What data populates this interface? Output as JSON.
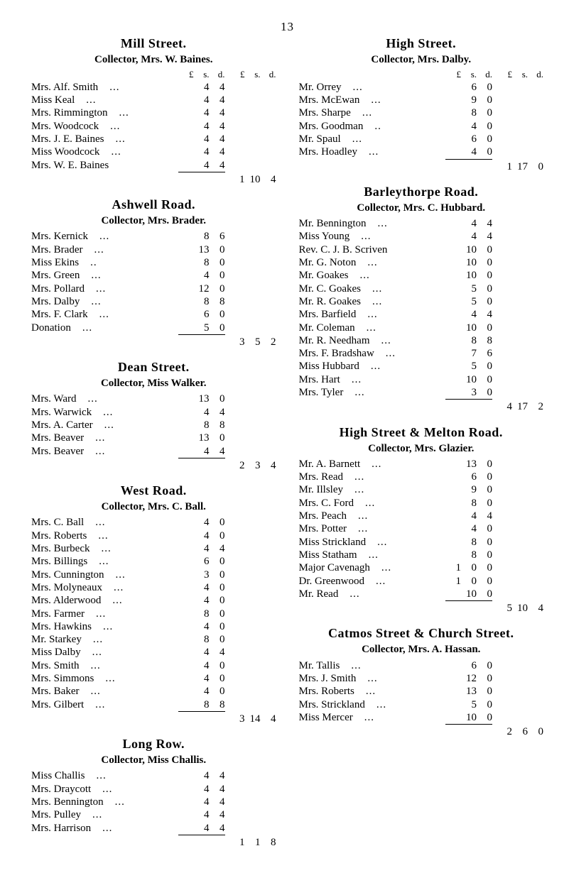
{
  "page_number": "13",
  "currency_header_inner": {
    "l": "£",
    "s": "s.",
    "d": "d."
  },
  "currency_header_total": {
    "l": "£",
    "s": "s.",
    "d": "d."
  },
  "left_sections": [
    {
      "title": "Mill Street.",
      "subtitle": "Collector, Mrs. W. Baines.",
      "show_headers": true,
      "entries": [
        {
          "name": "Mrs. Alf. Smith",
          "dots": "...",
          "s": "4",
          "d": "4"
        },
        {
          "name": "Miss Keal",
          "dots": "...",
          "s": "4",
          "d": "4"
        },
        {
          "name": "Mrs. Rimmington",
          "dots": "...",
          "s": "4",
          "d": "4"
        },
        {
          "name": "Mrs. Woodcock",
          "dots": "...",
          "s": "4",
          "d": "4"
        },
        {
          "name": "Mrs. J. E. Baines",
          "dots": "...",
          "s": "4",
          "d": "4"
        },
        {
          "name": "Miss Woodcock",
          "dots": "...",
          "s": "4",
          "d": "4"
        },
        {
          "name": "Mrs. W. E. Baines",
          "dots": "",
          "s": "4",
          "d": "4"
        }
      ],
      "total": {
        "l": "1",
        "s": "10",
        "d": "4"
      }
    },
    {
      "title": "Ashwell Road.",
      "subtitle": "Collector, Mrs. Brader.",
      "show_headers": false,
      "entries": [
        {
          "name": "Mrs. Kernick",
          "dots": "...",
          "s": "8",
          "d": "6"
        },
        {
          "name": "Mrs. Brader",
          "dots": "...",
          "s": "13",
          "d": "0"
        },
        {
          "name": "Miss Ekins",
          "dots": "..",
          "s": "8",
          "d": "0"
        },
        {
          "name": "Mrs. Green",
          "dots": "...",
          "s": "4",
          "d": "0"
        },
        {
          "name": "Mrs. Pollard",
          "dots": "...",
          "s": "12",
          "d": "0"
        },
        {
          "name": "Mrs. Dalby",
          "dots": "...",
          "s": "8",
          "d": "8"
        },
        {
          "name": "Mrs. F. Clark",
          "dots": "...",
          "s": "6",
          "d": "0"
        },
        {
          "name": "Donation",
          "dots": "...",
          "s": "5",
          "d": "0"
        }
      ],
      "total": {
        "l": "3",
        "s": "5",
        "d": "2"
      }
    },
    {
      "title": "Dean Street.",
      "subtitle": "Collector, Miss Walker.",
      "show_headers": false,
      "entries": [
        {
          "name": "Mrs. Ward",
          "dots": "...",
          "s": "13",
          "d": "0"
        },
        {
          "name": "Mrs. Warwick",
          "dots": "...",
          "s": "4",
          "d": "4"
        },
        {
          "name": "Mrs. A. Carter",
          "dots": "...",
          "s": "8",
          "d": "8"
        },
        {
          "name": "Mrs. Beaver",
          "dots": "...",
          "s": "13",
          "d": "0"
        },
        {
          "name": "Mrs. Beaver",
          "dots": "...",
          "s": "4",
          "d": "4"
        }
      ],
      "total": {
        "l": "2",
        "s": "3",
        "d": "4"
      }
    },
    {
      "title": "West Road.",
      "subtitle": "Collector, Mrs. C. Ball.",
      "show_headers": false,
      "entries": [
        {
          "name": "Mrs. C. Ball",
          "dots": "...",
          "s": "4",
          "d": "0"
        },
        {
          "name": "Mrs. Roberts",
          "dots": "...",
          "s": "4",
          "d": "0"
        },
        {
          "name": "Mrs. Burbeck",
          "dots": "...",
          "s": "4",
          "d": "4"
        },
        {
          "name": "Mrs. Billings",
          "dots": "...",
          "s": "6",
          "d": "0"
        },
        {
          "name": "Mrs. Cunnington",
          "dots": "...",
          "s": "3",
          "d": "0"
        },
        {
          "name": "Mrs. Molyneaux",
          "dots": "...",
          "s": "4",
          "d": "0"
        },
        {
          "name": "Mrs. Alderwood",
          "dots": "...",
          "s": "4",
          "d": "0"
        },
        {
          "name": "Mrs. Farmer",
          "dots": "...",
          "s": "8",
          "d": "0"
        },
        {
          "name": "Mrs. Hawkins",
          "dots": "...",
          "s": "4",
          "d": "0"
        },
        {
          "name": "Mr. Starkey",
          "dots": "...",
          "s": "8",
          "d": "0"
        },
        {
          "name": "Miss Dalby",
          "dots": "...",
          "s": "4",
          "d": "4"
        },
        {
          "name": "Mrs. Smith",
          "dots": "...",
          "s": "4",
          "d": "0"
        },
        {
          "name": "Mrs. Simmons",
          "dots": "...",
          "s": "4",
          "d": "0"
        },
        {
          "name": "Mrs. Baker",
          "dots": "...",
          "s": "4",
          "d": "0"
        },
        {
          "name": "Mrs. Gilbert",
          "dots": "...",
          "s": "8",
          "d": "8"
        }
      ],
      "total": {
        "l": "3",
        "s": "14",
        "d": "4"
      }
    },
    {
      "title": "Long Row.",
      "subtitle": "Collector, Miss Challis.",
      "show_headers": false,
      "entries": [
        {
          "name": "Miss Challis",
          "dots": "...",
          "s": "4",
          "d": "4"
        },
        {
          "name": "Mrs. Draycott",
          "dots": "...",
          "s": "4",
          "d": "4"
        },
        {
          "name": "Mrs. Bennington",
          "dots": "...",
          "s": "4",
          "d": "4"
        },
        {
          "name": "Mrs. Pulley",
          "dots": "...",
          "s": "4",
          "d": "4"
        },
        {
          "name": "Mrs. Harrison",
          "dots": "...",
          "s": "4",
          "d": "4"
        }
      ],
      "total": {
        "l": "1",
        "s": "1",
        "d": "8"
      }
    }
  ],
  "right_sections": [
    {
      "title": "High Street.",
      "subtitle": "Collector, Mrs. Dalby.",
      "show_headers": true,
      "entries": [
        {
          "name": "Mr. Orrey",
          "dots": "...",
          "s": "6",
          "d": "0"
        },
        {
          "name": "Mrs. McEwan",
          "dots": "...",
          "s": "9",
          "d": "0"
        },
        {
          "name": "Mrs. Sharpe",
          "dots": "...",
          "s": "8",
          "d": "0"
        },
        {
          "name": "Mrs. Goodman",
          "dots": "..",
          "s": "4",
          "d": "0"
        },
        {
          "name": "Mr. Spaul",
          "dots": "...",
          "s": "6",
          "d": "0"
        },
        {
          "name": "Mrs. Hoadley",
          "dots": "...",
          "s": "4",
          "d": "0"
        }
      ],
      "total": {
        "l": "1",
        "s": "17",
        "d": "0"
      }
    },
    {
      "title": "Barleythorpe Road.",
      "subtitle": "Collector, Mrs. C. Hubbard.",
      "show_headers": false,
      "entries": [
        {
          "name": "Mr. Bennington",
          "dots": "...",
          "s": "4",
          "d": "4"
        },
        {
          "name": "Miss Young",
          "dots": "...",
          "s": "4",
          "d": "4"
        },
        {
          "name": "Rev. C. J. B. Scriven",
          "dots": "",
          "s": "10",
          "d": "0"
        },
        {
          "name": "Mr. G. Noton",
          "dots": "...",
          "s": "10",
          "d": "0"
        },
        {
          "name": "Mr. Goakes",
          "dots": "...",
          "s": "10",
          "d": "0"
        },
        {
          "name": "Mr. C. Goakes",
          "dots": "...",
          "s": "5",
          "d": "0"
        },
        {
          "name": "Mr. R. Goakes",
          "dots": "...",
          "s": "5",
          "d": "0"
        },
        {
          "name": "Mrs. Barfield",
          "dots": "...",
          "s": "4",
          "d": "4"
        },
        {
          "name": "Mr. Coleman",
          "dots": "...",
          "s": "10",
          "d": "0"
        },
        {
          "name": "Mr. R. Needham",
          "dots": "...",
          "s": "8",
          "d": "8"
        },
        {
          "name": "Mrs. F. Bradshaw",
          "dots": "...",
          "s": "7",
          "d": "6"
        },
        {
          "name": "Miss Hubbard",
          "dots": "...",
          "s": "5",
          "d": "0"
        },
        {
          "name": "Mrs. Hart",
          "dots": "...",
          "s": "10",
          "d": "0"
        },
        {
          "name": "Mrs. Tyler",
          "dots": "...",
          "s": "3",
          "d": "0"
        }
      ],
      "total": {
        "l": "4",
        "s": "17",
        "d": "2"
      }
    },
    {
      "title": "High Street & Melton Road.",
      "subtitle": "Collector, Mrs. Glazier.",
      "show_headers": false,
      "entries": [
        {
          "name": "Mr. A. Barnett",
          "dots": "...",
          "s": "13",
          "d": "0"
        },
        {
          "name": "Mrs. Read",
          "dots": "...",
          "s": "6",
          "d": "0"
        },
        {
          "name": "Mr. Illsley",
          "dots": "...",
          "s": "9",
          "d": "0"
        },
        {
          "name": "Mrs. C. Ford",
          "dots": "...",
          "s": "8",
          "d": "0"
        },
        {
          "name": "Mrs. Peach",
          "dots": "...",
          "s": "4",
          "d": "4"
        },
        {
          "name": "Mrs. Potter",
          "dots": "...",
          "s": "4",
          "d": "0"
        },
        {
          "name": "Miss Strickland",
          "dots": "...",
          "s": "8",
          "d": "0"
        },
        {
          "name": "Miss Statham",
          "dots": "...",
          "s": "8",
          "d": "0"
        },
        {
          "name": "Major Cavenagh",
          "dots": "...",
          "l": "1",
          "s": "0",
          "d": "0"
        },
        {
          "name": "Dr. Greenwood",
          "dots": "...",
          "l": "1",
          "s": "0",
          "d": "0"
        },
        {
          "name": "Mr. Read",
          "dots": "...",
          "s": "10",
          "d": "0"
        }
      ],
      "total": {
        "l": "5",
        "s": "10",
        "d": "4"
      }
    },
    {
      "title": "Catmos Street & Church Street.",
      "subtitle": "Collector, Mrs. A. Hassan.",
      "show_headers": false,
      "entries": [
        {
          "name": "Mr. Tallis",
          "dots": "...",
          "s": "6",
          "d": "0"
        },
        {
          "name": "Mrs. J. Smith",
          "dots": "...",
          "s": "12",
          "d": "0"
        },
        {
          "name": "Mrs. Roberts",
          "dots": "...",
          "s": "13",
          "d": "0"
        },
        {
          "name": "Mrs. Strickland",
          "dots": "...",
          "s": "5",
          "d": "0"
        },
        {
          "name": "Miss Mercer",
          "dots": "...",
          "s": "10",
          "d": "0"
        }
      ],
      "total": {
        "l": "2",
        "s": "6",
        "d": "0"
      }
    }
  ]
}
